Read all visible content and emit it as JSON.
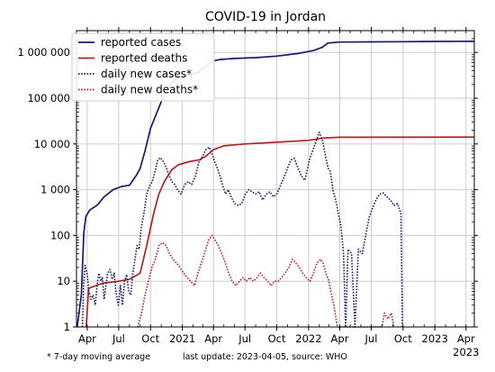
{
  "chart_data": {
    "type": "line",
    "title": "COVID-19 in Jordan",
    "y_scale": "log",
    "ylim": [
      1,
      3000000
    ],
    "xlim": [
      "2020-03-01",
      "2023-04-25"
    ],
    "grid": true,
    "legend_position": "top-left",
    "y_ticks": [
      {
        "value": 1,
        "label": "1"
      },
      {
        "value": 10,
        "label": "10"
      },
      {
        "value": 100,
        "label": "100"
      },
      {
        "value": 1000,
        "label": "1 000"
      },
      {
        "value": 10000,
        "label": "10 000"
      },
      {
        "value": 100000,
        "label": "100 000"
      },
      {
        "value": 1000000,
        "label": "1 000 000"
      }
    ],
    "x_ticks": [
      {
        "date": "2020-04-01",
        "label": "Apr"
      },
      {
        "date": "2020-07-01",
        "label": "Jul"
      },
      {
        "date": "2020-10-01",
        "label": "Oct"
      },
      {
        "date": "2021-01-01",
        "label": "2021"
      },
      {
        "date": "2021-04-01",
        "label": "Apr"
      },
      {
        "date": "2021-07-01",
        "label": "Jul"
      },
      {
        "date": "2021-10-01",
        "label": "Oct"
      },
      {
        "date": "2022-01-01",
        "label": "2022"
      },
      {
        "date": "2022-04-01",
        "label": "Apr"
      },
      {
        "date": "2022-07-01",
        "label": "Jul"
      },
      {
        "date": "2022-10-01",
        "label": "Oct"
      },
      {
        "date": "2023-01-01",
        "label": "2023"
      },
      {
        "date": "2023-04-01",
        "label": "Apr\n2023"
      }
    ],
    "series": [
      {
        "name": "reported cases",
        "color": "#191970",
        "dash": "solid",
        "points": [
          [
            "2020-03-03",
            1
          ],
          [
            "2020-03-15",
            5
          ],
          [
            "2020-03-22",
            112
          ],
          [
            "2020-03-28",
            259
          ],
          [
            "2020-04-08",
            358
          ],
          [
            "2020-04-30",
            460
          ],
          [
            "2020-05-20",
            700
          ],
          [
            "2020-06-15",
            1000
          ],
          [
            "2020-07-10",
            1180
          ],
          [
            "2020-08-01",
            1250
          ],
          [
            "2020-08-20",
            2000
          ],
          [
            "2020-09-01",
            2900
          ],
          [
            "2020-09-15",
            7000
          ],
          [
            "2020-10-01",
            22000
          ],
          [
            "2020-10-20",
            50000
          ],
          [
            "2020-11-05",
            100000
          ],
          [
            "2020-11-25",
            200000
          ],
          [
            "2020-12-15",
            270000
          ],
          [
            "2021-01-15",
            315000
          ],
          [
            "2021-02-15",
            365000
          ],
          [
            "2021-03-10",
            500000
          ],
          [
            "2021-04-01",
            650000
          ],
          [
            "2021-04-20",
            700000
          ],
          [
            "2021-06-01",
            740000
          ],
          [
            "2021-08-01",
            770000
          ],
          [
            "2021-10-01",
            830000
          ],
          [
            "2021-12-01",
            950000
          ],
          [
            "2022-01-15",
            1100000
          ],
          [
            "2022-02-10",
            1300000
          ],
          [
            "2022-02-25",
            1600000
          ],
          [
            "2022-04-01",
            1690000
          ],
          [
            "2022-07-01",
            1700000
          ],
          [
            "2022-10-01",
            1720000
          ],
          [
            "2023-01-01",
            1740000
          ],
          [
            "2023-04-25",
            1750000
          ]
        ]
      },
      {
        "name": "reported deaths",
        "color": "#b22222",
        "dash": "solid",
        "points": [
          [
            "2020-03-29",
            1
          ],
          [
            "2020-04-05",
            7
          ],
          [
            "2020-05-15",
            9
          ],
          [
            "2020-07-01",
            10
          ],
          [
            "2020-08-01",
            11
          ],
          [
            "2020-09-01",
            15
          ],
          [
            "2020-09-20",
            60
          ],
          [
            "2020-10-10",
            300
          ],
          [
            "2020-10-25",
            800
          ],
          [
            "2020-11-10",
            1500
          ],
          [
            "2020-12-01",
            2700
          ],
          [
            "2020-12-20",
            3500
          ],
          [
            "2021-01-20",
            4100
          ],
          [
            "2021-02-20",
            4500
          ],
          [
            "2021-03-10",
            5400
          ],
          [
            "2021-04-01",
            7500
          ],
          [
            "2021-05-01",
            9100
          ],
          [
            "2021-07-01",
            10000
          ],
          [
            "2021-10-01",
            10900
          ],
          [
            "2022-01-01",
            12000
          ],
          [
            "2022-02-15",
            13500
          ],
          [
            "2022-04-01",
            14000
          ],
          [
            "2023-04-25",
            14100
          ]
        ]
      },
      {
        "name": "daily new cases*",
        "color": "#191970",
        "dash": "dotted",
        "points": [
          [
            "2020-03-18",
            1
          ],
          [
            "2020-03-22",
            10
          ],
          [
            "2020-03-26",
            22
          ],
          [
            "2020-04-01",
            14
          ],
          [
            "2020-04-06",
            6
          ],
          [
            "2020-04-12",
            4
          ],
          [
            "2020-04-18",
            5
          ],
          [
            "2020-04-24",
            3
          ],
          [
            "2020-04-30",
            9
          ],
          [
            "2020-05-05",
            15
          ],
          [
            "2020-05-10",
            10
          ],
          [
            "2020-05-15",
            12
          ],
          [
            "2020-05-20",
            4
          ],
          [
            "2020-05-25",
            8
          ],
          [
            "2020-05-30",
            15
          ],
          [
            "2020-06-06",
            18
          ],
          [
            "2020-06-12",
            11
          ],
          [
            "2020-06-18",
            15
          ],
          [
            "2020-06-24",
            5
          ],
          [
            "2020-06-30",
            3
          ],
          [
            "2020-07-06",
            8
          ],
          [
            "2020-07-12",
            3
          ],
          [
            "2020-07-18",
            10
          ],
          [
            "2020-07-24",
            14
          ],
          [
            "2020-07-30",
            6
          ],
          [
            "2020-08-05",
            5
          ],
          [
            "2020-08-11",
            15
          ],
          [
            "2020-08-17",
            30
          ],
          [
            "2020-08-23",
            60
          ],
          [
            "2020-08-29",
            50
          ],
          [
            "2020-09-04",
            150
          ],
          [
            "2020-09-12",
            300
          ],
          [
            "2020-09-20",
            800
          ],
          [
            "2020-09-28",
            1200
          ],
          [
            "2020-10-06",
            1500
          ],
          [
            "2020-10-14",
            2500
          ],
          [
            "2020-10-22",
            4500
          ],
          [
            "2020-10-30",
            5000
          ],
          [
            "2020-11-08",
            4000
          ],
          [
            "2020-11-16",
            3000
          ],
          [
            "2020-11-24",
            2000
          ],
          [
            "2020-12-02",
            1500
          ],
          [
            "2020-12-10",
            1300
          ],
          [
            "2020-12-18",
            1000
          ],
          [
            "2020-12-28",
            800
          ],
          [
            "2021-01-08",
            1300
          ],
          [
            "2021-01-18",
            1500
          ],
          [
            "2021-01-28",
            1300
          ],
          [
            "2021-02-08",
            2000
          ],
          [
            "2021-02-18",
            4000
          ],
          [
            "2021-03-01",
            5500
          ],
          [
            "2021-03-10",
            7500
          ],
          [
            "2021-03-20",
            8500
          ],
          [
            "2021-03-28",
            6000
          ],
          [
            "2021-04-05",
            4000
          ],
          [
            "2021-04-12",
            3000
          ],
          [
            "2021-04-20",
            2000
          ],
          [
            "2021-04-28",
            1200
          ],
          [
            "2021-05-06",
            800
          ],
          [
            "2021-05-14",
            1000
          ],
          [
            "2021-05-22",
            700
          ],
          [
            "2021-06-01",
            500
          ],
          [
            "2021-06-12",
            450
          ],
          [
            "2021-06-22",
            500
          ],
          [
            "2021-07-02",
            800
          ],
          [
            "2021-07-12",
            1000
          ],
          [
            "2021-07-22",
            900
          ],
          [
            "2021-08-01",
            800
          ],
          [
            "2021-08-11",
            900
          ],
          [
            "2021-08-21",
            600
          ],
          [
            "2021-09-01",
            800
          ],
          [
            "2021-09-11",
            900
          ],
          [
            "2021-09-21",
            700
          ],
          [
            "2021-10-01",
            800
          ],
          [
            "2021-10-11",
            1200
          ],
          [
            "2021-10-21",
            1800
          ],
          [
            "2021-11-01",
            3000
          ],
          [
            "2021-11-11",
            4500
          ],
          [
            "2021-11-21",
            4800
          ],
          [
            "2021-12-01",
            3000
          ],
          [
            "2021-12-11",
            2000
          ],
          [
            "2021-12-21",
            1600
          ],
          [
            "2022-01-05",
            5000
          ],
          [
            "2022-01-20",
            10000
          ],
          [
            "2022-02-01",
            18000
          ],
          [
            "2022-02-10",
            12000
          ],
          [
            "2022-02-18",
            6000
          ],
          [
            "2022-02-26",
            3000
          ],
          [
            "2022-03-05",
            2500
          ],
          [
            "2022-03-12",
            1000
          ],
          [
            "2022-03-20",
            600
          ],
          [
            "2022-03-28",
            300
          ],
          [
            "2022-04-05",
            150
          ],
          [
            "2022-04-12",
            40
          ],
          [
            "2022-04-18",
            1
          ],
          [
            "2022-04-25",
            50
          ],
          [
            "2022-05-05",
            40
          ],
          [
            "2022-05-15",
            1
          ],
          [
            "2022-05-25",
            50
          ],
          [
            "2022-06-05",
            40
          ],
          [
            "2022-06-15",
            100
          ],
          [
            "2022-06-25",
            250
          ],
          [
            "2022-07-05",
            400
          ],
          [
            "2022-07-15",
            600
          ],
          [
            "2022-07-25",
            800
          ],
          [
            "2022-08-05",
            850
          ],
          [
            "2022-08-15",
            700
          ],
          [
            "2022-08-25",
            600
          ],
          [
            "2022-09-05",
            450
          ],
          [
            "2022-09-15",
            500
          ],
          [
            "2022-09-25",
            300
          ],
          [
            "2022-09-29",
            1
          ]
        ]
      },
      {
        "name": "daily new deaths*",
        "color": "#b22222",
        "dash": "dotted",
        "points": [
          [
            "2020-08-25",
            1
          ],
          [
            "2020-09-05",
            2
          ],
          [
            "2020-09-15",
            5
          ],
          [
            "2020-09-25",
            10
          ],
          [
            "2020-10-05",
            20
          ],
          [
            "2020-10-15",
            30
          ],
          [
            "2020-10-25",
            60
          ],
          [
            "2020-11-05",
            70
          ],
          [
            "2020-11-15",
            60
          ],
          [
            "2020-11-25",
            40
          ],
          [
            "2020-12-05",
            30
          ],
          [
            "2020-12-15",
            25
          ],
          [
            "2020-12-25",
            20
          ],
          [
            "2021-01-05",
            15
          ],
          [
            "2021-01-15",
            12
          ],
          [
            "2021-01-25",
            10
          ],
          [
            "2021-02-05",
            8
          ],
          [
            "2021-02-15",
            15
          ],
          [
            "2021-02-25",
            25
          ],
          [
            "2021-03-08",
            45
          ],
          [
            "2021-03-18",
            80
          ],
          [
            "2021-03-28",
            100
          ],
          [
            "2021-04-05",
            80
          ],
          [
            "2021-04-15",
            60
          ],
          [
            "2021-04-25",
            40
          ],
          [
            "2021-05-05",
            25
          ],
          [
            "2021-05-15",
            15
          ],
          [
            "2021-05-25",
            10
          ],
          [
            "2021-06-05",
            8
          ],
          [
            "2021-06-15",
            10
          ],
          [
            "2021-06-25",
            12
          ],
          [
            "2021-07-05",
            10
          ],
          [
            "2021-07-15",
            12
          ],
          [
            "2021-07-25",
            10
          ],
          [
            "2021-08-05",
            12
          ],
          [
            "2021-08-15",
            15
          ],
          [
            "2021-08-25",
            12
          ],
          [
            "2021-09-05",
            10
          ],
          [
            "2021-09-15",
            8
          ],
          [
            "2021-09-25",
            10
          ],
          [
            "2021-10-05",
            10
          ],
          [
            "2021-10-15",
            12
          ],
          [
            "2021-10-25",
            15
          ],
          [
            "2021-11-05",
            20
          ],
          [
            "2021-11-15",
            30
          ],
          [
            "2021-11-25",
            25
          ],
          [
            "2021-12-05",
            20
          ],
          [
            "2021-12-15",
            15
          ],
          [
            "2021-12-25",
            12
          ],
          [
            "2022-01-05",
            10
          ],
          [
            "2022-01-15",
            15
          ],
          [
            "2022-01-25",
            25
          ],
          [
            "2022-02-05",
            30
          ],
          [
            "2022-02-12",
            25
          ],
          [
            "2022-02-20",
            15
          ],
          [
            "2022-03-01",
            10
          ],
          [
            "2022-03-08",
            5
          ],
          [
            "2022-03-15",
            3
          ],
          [
            "2022-03-25",
            1
          ],
          [
            "2022-08-01",
            1
          ],
          [
            "2022-08-08",
            2
          ],
          [
            "2022-08-18",
            1.5
          ],
          [
            "2022-08-28",
            2
          ],
          [
            "2022-09-05",
            1
          ]
        ]
      }
    ],
    "footnote": "* 7-day moving average",
    "update_note": "last update: 2023-04-05, source: WHO"
  }
}
